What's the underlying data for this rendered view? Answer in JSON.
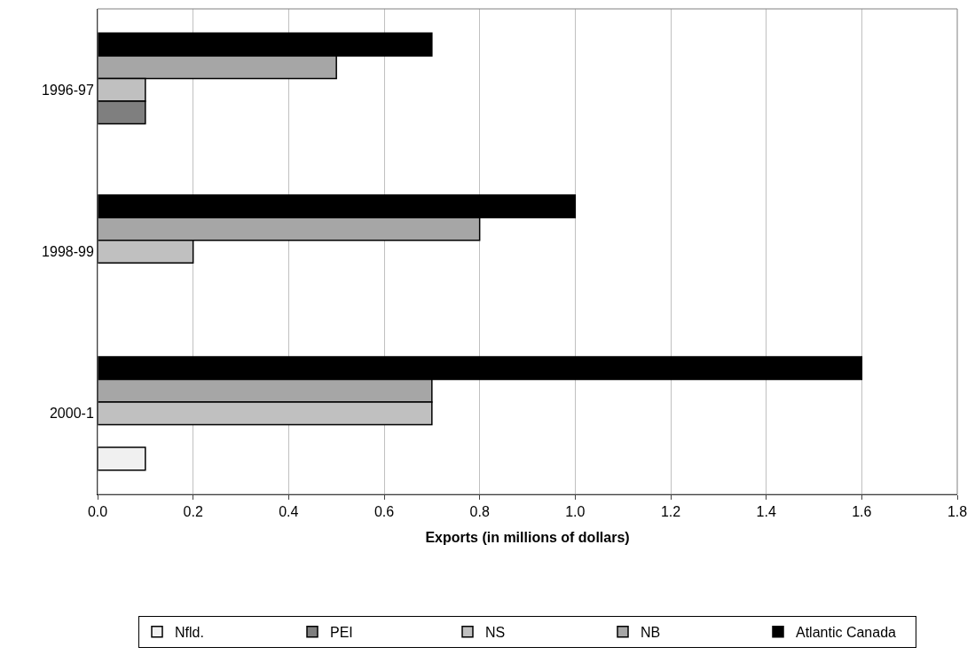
{
  "chart_data": {
    "type": "bar",
    "orientation": "horizontal",
    "categories": [
      "1996-97",
      "1998-99",
      "2000-1"
    ],
    "series": [
      {
        "name": "Nfld.",
        "color": "#f0f0f0",
        "values": [
          null,
          null,
          0.1
        ]
      },
      {
        "name": "PEI",
        "color": "#7f7f7f",
        "values": [
          0.1,
          null,
          null
        ]
      },
      {
        "name": "NS",
        "color": "#c0c0c0",
        "values": [
          0.1,
          0.2,
          0.7
        ]
      },
      {
        "name": "NB",
        "color": "#a6a6a6",
        "values": [
          0.5,
          0.8,
          0.7
        ]
      },
      {
        "name": "Atlantic Canada",
        "color": "#000000",
        "values": [
          0.7,
          1.0,
          1.6
        ]
      }
    ],
    "xlabel": "Exports (in millions of dollars)",
    "xlim": [
      0,
      1.8
    ],
    "xticks": [
      {
        "value": 0,
        "label": "0.0"
      },
      {
        "value": 0.2,
        "label": "0.2"
      },
      {
        "value": 0.4,
        "label": "0.4"
      },
      {
        "value": 0.6,
        "label": "0.6"
      },
      {
        "value": 0.8,
        "label": "0.8"
      },
      {
        "value": 1.0,
        "label": "1.0"
      },
      {
        "value": 1.2,
        "label": "1.2"
      },
      {
        "value": 1.4,
        "label": "1.4"
      },
      {
        "value": 1.6,
        "label": "1.6"
      },
      {
        "value": 1.8,
        "label": "1.8"
      }
    ],
    "grid": "x",
    "legend": "bottom"
  }
}
